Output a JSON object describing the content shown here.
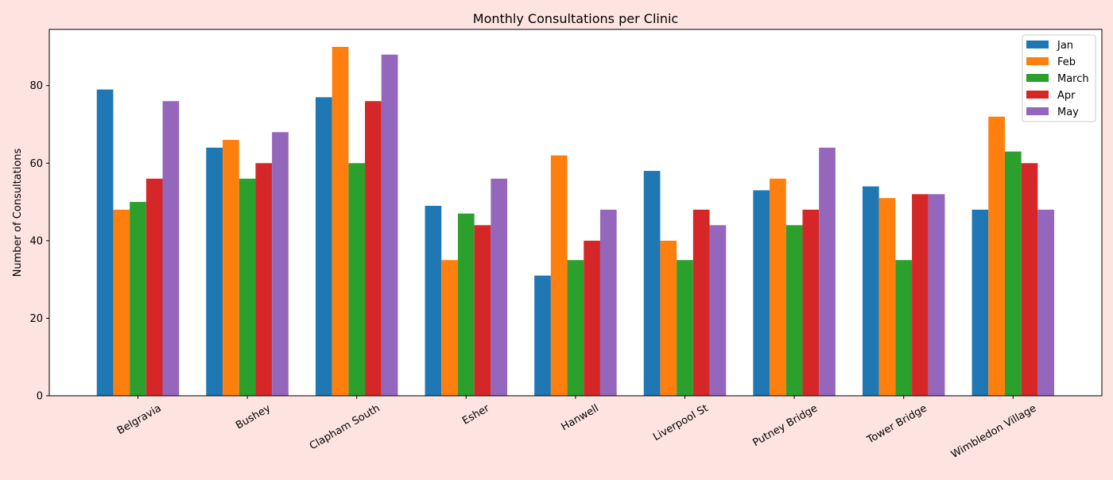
{
  "colors": {
    "background": "#fde4e1",
    "plot_background": "#ffffff"
  },
  "chart_data": {
    "type": "bar",
    "title": "Monthly Consultations per Clinic",
    "xlabel": "",
    "ylabel": "Number of Consultations",
    "ylim": [
      0,
      94.5
    ],
    "yticks": [
      0,
      20,
      40,
      60,
      80
    ],
    "grid": false,
    "legend_position": "top-right",
    "categories": [
      "Belgravia",
      "Bushey",
      "Clapham South",
      "Esher",
      "Hanwell",
      "Liverpool St",
      "Putney Bridge",
      "Tower Bridge",
      "Wimbledon Village"
    ],
    "series": [
      {
        "name": "Jan",
        "color": "#1f77b4",
        "values": [
          79,
          64,
          77,
          49,
          31,
          58,
          53,
          54,
          48
        ]
      },
      {
        "name": "Feb",
        "color": "#ff7f0e",
        "values": [
          48,
          66,
          90,
          35,
          62,
          40,
          56,
          51,
          72
        ]
      },
      {
        "name": "March",
        "color": "#2ca02c",
        "values": [
          50,
          56,
          60,
          47,
          35,
          35,
          44,
          35,
          63
        ]
      },
      {
        "name": "Apr",
        "color": "#d62728",
        "values": [
          56,
          60,
          76,
          44,
          40,
          48,
          48,
          52,
          60
        ]
      },
      {
        "name": "May",
        "color": "#9467bd",
        "values": [
          76,
          68,
          88,
          56,
          48,
          44,
          64,
          52,
          48
        ]
      }
    ]
  }
}
